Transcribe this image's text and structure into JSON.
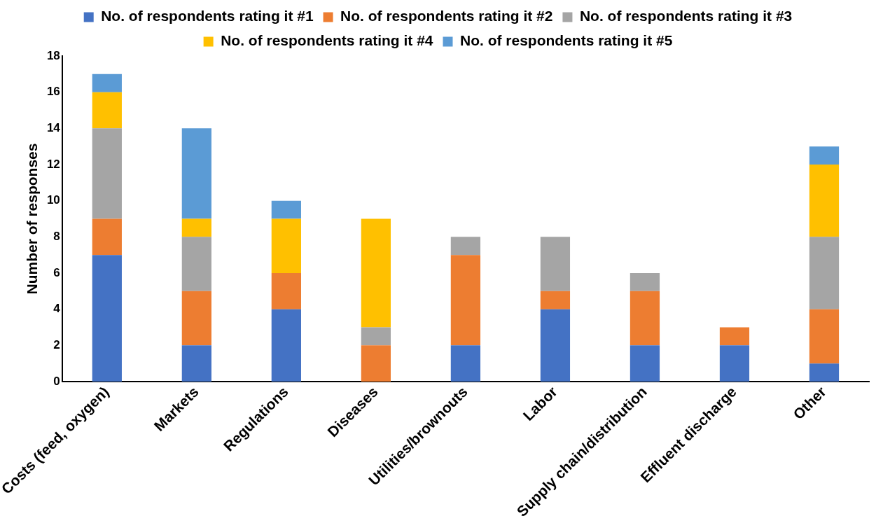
{
  "chart_data": {
    "type": "bar",
    "stacked": true,
    "ylabel": "Number of responses",
    "categories": [
      "Costs (feed, oxygen)",
      "Markets",
      "Regulations",
      "Diseases",
      "Utilities/brownouts",
      "Labor",
      "Supply chain/distribution",
      "Effluent discharge",
      "Other"
    ],
    "series": [
      {
        "name": "No. of respondents rating it #1",
        "color": "#4472c4",
        "values": [
          7,
          2,
          4,
          0,
          2,
          4,
          2,
          2,
          1
        ]
      },
      {
        "name": "No. of respondents rating it #2",
        "color": "#ed7d31",
        "values": [
          2,
          3,
          2,
          2,
          5,
          1,
          3,
          1,
          3
        ]
      },
      {
        "name": "No. of respondents rating it #3",
        "color": "#a5a5a5",
        "values": [
          5,
          3,
          0,
          1,
          1,
          3,
          1,
          0,
          4
        ]
      },
      {
        "name": "No. of respondents rating it #4",
        "color": "#ffc000",
        "values": [
          2,
          1,
          3,
          6,
          0,
          0,
          0,
          0,
          4
        ]
      },
      {
        "name": "No. of respondents rating it #5",
        "color": "#5b9bd5",
        "values": [
          1,
          5,
          1,
          0,
          0,
          0,
          0,
          0,
          1
        ]
      }
    ],
    "ylim": [
      0,
      18
    ],
    "yticks": [
      0,
      2,
      4,
      6,
      8,
      10,
      12,
      14,
      16,
      18
    ],
    "grid": false,
    "legend": "top"
  }
}
